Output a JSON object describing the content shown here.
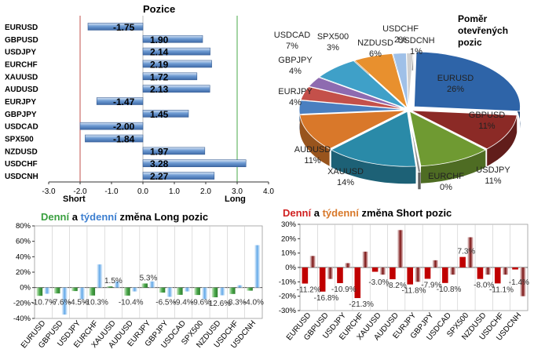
{
  "chart_data": [
    {
      "type": "bar",
      "orientation": "horizontal",
      "title": "Pozice",
      "categories": [
        "EURUSD",
        "GBPUSD",
        "USDJPY",
        "EURCHF",
        "XAUUSD",
        "AUDUSD",
        "EURJPY",
        "GBPJPY",
        "USDCAD",
        "SPX500",
        "NZDUSD",
        "USDCHF",
        "USDCNH"
      ],
      "values": [
        -1.75,
        1.9,
        2.14,
        2.19,
        1.72,
        2.13,
        -1.47,
        1.45,
        -2.0,
        -1.84,
        1.97,
        3.28,
        2.27
      ],
      "value_labels": [
        "-1.75",
        "1.90",
        "2.14",
        "2.19",
        "1.72",
        "2.13",
        "-1.47",
        "1.45",
        "-2.00",
        "-1.84",
        "1.97",
        "3.28",
        "2.27"
      ],
      "xlim": [
        -3.0,
        4.0
      ],
      "x_ticks": [
        "-3.0",
        "-2.0",
        "-1.0",
        "0.0",
        "1.0",
        "2.0",
        "3.0",
        "4.0"
      ],
      "annotations": [
        "Short",
        "Long"
      ],
      "colors": {
        "bar": "#4f7fbd",
        "bar_light": "#a9c4e8",
        "short_line": "#c0504d",
        "long_line": "#4aa84a"
      }
    },
    {
      "type": "pie",
      "title_lines": [
        "Poměr",
        "otevřených",
        "pozic"
      ],
      "labels": [
        "EURUSD",
        "GBPUSD",
        "USDJPY",
        "EURCHF",
        "XAUUSD",
        "AUDUSD",
        "EURJPY",
        "GBPJPY",
        "SPX500",
        "USDCAD",
        "NZDUSD",
        "USDCHF",
        "USDCNH"
      ],
      "values": [
        26,
        11,
        11,
        0,
        14,
        11,
        4,
        4,
        3,
        7,
        6,
        2,
        1
      ],
      "value_labels": [
        "26%",
        "11%",
        "11%",
        "0%",
        "14%",
        "11%",
        "4%",
        "4%",
        "3%",
        "7%",
        "6%",
        "2%",
        "1%"
      ],
      "colors": [
        "#2e64a8",
        "#8b2a26",
        "#6f9a32",
        "#8a8a8a",
        "#2a8aa8",
        "#d9782a",
        "#4a7fc0",
        "#c4504a",
        "#8e6bb0",
        "#3fa0c8",
        "#e8902e",
        "#9fc0e8",
        "#d0d0d0"
      ]
    },
    {
      "type": "bar",
      "title_parts": [
        "Denní",
        " a ",
        "týdenní",
        " změna Long pozic"
      ],
      "categories": [
        "EURUSD",
        "GBPUSD",
        "USDJPY",
        "EURCHF",
        "XAUUSD",
        "AUDUSD",
        "EURJPY",
        "GBPJPY",
        "USDCAD",
        "SPX500",
        "NZDUSD",
        "USDCHF",
        "USDCNH"
      ],
      "series": [
        {
          "name": "Denní",
          "values": [
            -10.7,
            -7.6,
            -4.5,
            -10.3,
            1.5,
            -10.4,
            5.3,
            -6.5,
            -9.4,
            -9.6,
            -12.6,
            -8.3,
            -4.0
          ]
        },
        {
          "name": "týdenní",
          "values": [
            -8,
            -35,
            -15,
            30,
            8,
            -5,
            8,
            -12,
            -5,
            -15,
            -10,
            3,
            55
          ]
        }
      ],
      "value_labels": [
        "-10.7%",
        "-7.6%",
        "-4.5%",
        "-10.3%",
        "1.5%",
        "-10.4%",
        "5.3%",
        "-6.5%",
        "-9.4%",
        "-9.6%",
        "-12.6%",
        "-8.3%",
        "-4.0%"
      ],
      "ylim": [
        -40,
        80
      ],
      "y_ticks": [
        "-40%",
        "-20%",
        "0%",
        "20%",
        "40%",
        "60%",
        "80%"
      ],
      "colors": {
        "daily": "#4aa84a",
        "daily_word": "#3aa040",
        "weekly": "#62a8e8",
        "weekly_word": "#3d7fd0"
      }
    },
    {
      "type": "bar",
      "title_parts": [
        "Denní",
        " a ",
        "týdenní",
        " změna Short pozic"
      ],
      "categories": [
        "EURUSD",
        "GBPUSD",
        "USDJPY",
        "EURCHF",
        "XAUUSD",
        "AUDUSD",
        "EURJPY",
        "GBPJPY",
        "USDCAD",
        "SPX500",
        "NZDUSD",
        "USDCHF",
        "USDCNH"
      ],
      "series": [
        {
          "name": "Denní",
          "values": [
            -11.2,
            -16.8,
            -10.9,
            -21.3,
            -3.0,
            -8.2,
            -11.8,
            -7.9,
            -10.8,
            7.3,
            -8.0,
            -11.1,
            -1.4
          ]
        },
        {
          "name": "týdenní",
          "values": [
            8,
            -8,
            3,
            11,
            -5,
            26,
            -10,
            5,
            -5,
            21,
            -5,
            -5,
            -20
          ]
        }
      ],
      "value_labels": [
        "-11.2%",
        "-16.8%",
        "-10.9%",
        "-21.3%",
        "-3.0%",
        "-8.2%",
        "-11.8%",
        "-7.9%",
        "-10.8%",
        "7.3%",
        "-8.0%",
        "-11.1%",
        "-1.4%"
      ],
      "ylim": [
        -30,
        30
      ],
      "y_ticks": [
        "-30%",
        "-20%",
        "-10%",
        "0%",
        "10%",
        "20%",
        "30%"
      ],
      "colors": {
        "daily": "#c00000",
        "daily_word": "#d02020",
        "weekly": "#7a1010",
        "weekly_word": "#d8782a"
      }
    }
  ]
}
